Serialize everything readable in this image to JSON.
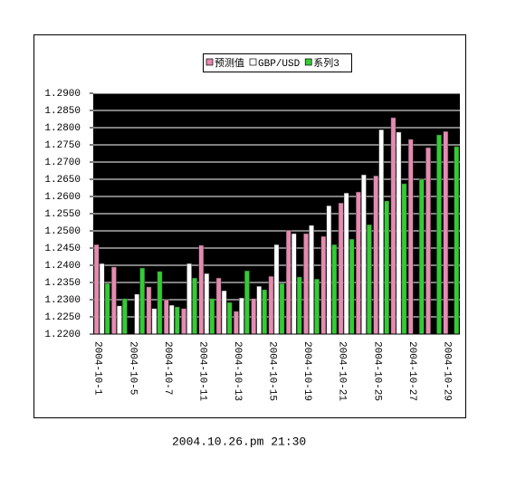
{
  "chart_data": {
    "type": "bar",
    "categories": [
      "2004-10-1",
      null,
      "2004-10-5",
      null,
      "2004-10-7",
      null,
      "2004-10-11",
      null,
      "2004-10-13",
      null,
      "2004-10-15",
      null,
      "2004-10-19",
      null,
      "2004-10-21",
      null,
      "2004-10-25",
      null,
      "2004-10-27",
      null,
      "2004-10-29"
    ],
    "series": [
      {
        "name": "预测值",
        "color": "#e68ab0",
        "values": [
          1.246,
          1.2395,
          1.22,
          1.2337,
          1.23,
          1.2274,
          1.2458,
          1.2363,
          1.2266,
          1.2303,
          1.2368,
          1.2502,
          1.2492,
          1.2484,
          1.2581,
          1.2613,
          1.266,
          1.2829,
          1.2766,
          1.2742,
          1.2789
        ]
      },
      {
        "name": "GBP/USD",
        "color": "#ffffff",
        "values": [
          1.2405,
          1.2282,
          1.2316,
          1.2274,
          1.2284,
          1.2405,
          1.2376,
          1.2326,
          1.2305,
          1.2339,
          1.246,
          1.2492,
          1.2516,
          1.2573,
          1.261,
          1.2663,
          1.2794,
          1.2787,
          null,
          null,
          null
        ]
      },
      {
        "name": "系列3",
        "color": "#33cc33",
        "values": [
          1.2347,
          1.2303,
          1.2392,
          1.2382,
          1.2279,
          1.2363,
          1.2303,
          1.2292,
          1.2384,
          1.2329,
          1.2347,
          1.2366,
          1.236,
          1.246,
          1.2476,
          1.2518,
          1.2587,
          1.2637,
          1.265,
          1.2779,
          1.2745
        ]
      }
    ],
    "ylim": [
      1.22,
      1.29
    ],
    "yticks": [
      {
        "value": 1.22,
        "label": "1.2200"
      },
      {
        "value": 1.225,
        "label": "1.2250"
      },
      {
        "value": 1.23,
        "label": "1.2300"
      },
      {
        "value": 1.235,
        "label": "1.2350"
      },
      {
        "value": 1.24,
        "label": "1.2400"
      },
      {
        "value": 1.245,
        "label": "1.2450"
      },
      {
        "value": 1.25,
        "label": "1.2500"
      },
      {
        "value": 1.255,
        "label": "1.2550"
      },
      {
        "value": 1.26,
        "label": "1.2600"
      },
      {
        "value": 1.265,
        "label": "1.2650"
      },
      {
        "value": 1.27,
        "label": "1.2700"
      },
      {
        "value": 1.275,
        "label": "1.2750"
      },
      {
        "value": 1.28,
        "label": "1.2800"
      },
      {
        "value": 1.285,
        "label": "1.2850"
      },
      {
        "value": 1.29,
        "label": "1.2900"
      }
    ],
    "grid": true,
    "legend": "top",
    "plot_background": "#000000",
    "footer": "2004.10.26.pm 21:30"
  }
}
